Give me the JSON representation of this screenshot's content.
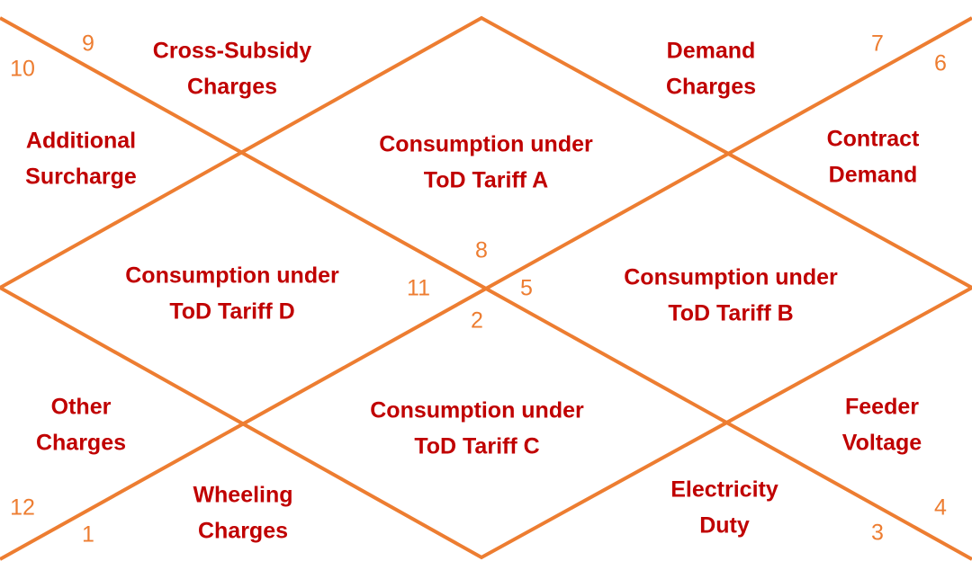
{
  "houses": [
    {
      "number": 1,
      "label": [
        "Wheeling",
        "Charges"
      ]
    },
    {
      "number": 2,
      "label": [
        "Consumption under",
        "ToD Tariff C"
      ]
    },
    {
      "number": 3,
      "label": [
        "Electricity",
        "Duty"
      ]
    },
    {
      "number": 4,
      "label": [
        "Feeder",
        "Voltage"
      ]
    },
    {
      "number": 5,
      "label": [
        "Consumption under",
        "ToD Tariff B"
      ]
    },
    {
      "number": 6,
      "label": [
        "Contract",
        "Demand"
      ]
    },
    {
      "number": 7,
      "label": [
        "Demand",
        "Charges"
      ]
    },
    {
      "number": 8,
      "label": [
        "Consumption under",
        "ToD Tariff A"
      ]
    },
    {
      "number": 9,
      "label": [
        "Cross-Subsidy",
        "Charges"
      ]
    },
    {
      "number": 10,
      "label": [
        "Additional",
        "Surcharge"
      ]
    },
    {
      "number": 11,
      "label": [
        "Consumption under",
        "ToD Tariff D"
      ]
    },
    {
      "number": 12,
      "label": [
        "Other",
        "Charges"
      ]
    }
  ]
}
